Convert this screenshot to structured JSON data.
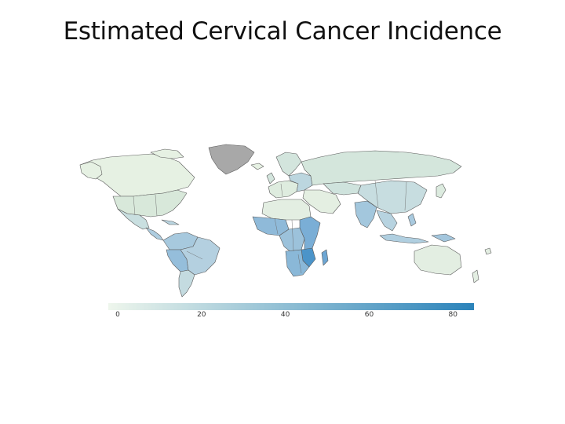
{
  "slide": {
    "title": "Estimated Cervical Cancer Incidence"
  },
  "legend": {
    "min": 0,
    "max": 85,
    "ticks": [
      "0",
      "20",
      "40",
      "60",
      "80"
    ],
    "color_low": "#eef6ec",
    "color_high": "#2b83ba"
  },
  "colors": {
    "no_data": "#a8a8a8",
    "border": "#5a5a5a"
  }
}
